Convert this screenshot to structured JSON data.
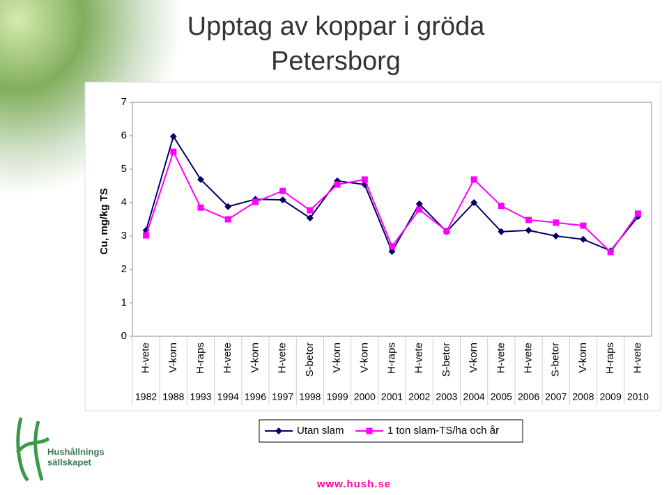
{
  "chart_data": {
    "type": "line",
    "title": "Upptag av koppar i gröda",
    "subtitle": "Petersborg",
    "y_label": "Cu, mg/kg TS",
    "categories": [
      "H-vete",
      "V-korn",
      "H-raps",
      "H-vete",
      "V-korn",
      "H-vete",
      "S-betor",
      "V-korn",
      "V-korn",
      "H-raps",
      "H-vete",
      "S-betor",
      "V-korn",
      "H-vete",
      "H-vete",
      "S-betor",
      "V-korn",
      "H-raps",
      "H-vete"
    ],
    "years": [
      "1982",
      "1988",
      "1993",
      "1994",
      "1996",
      "1997",
      "1998",
      "1999",
      "2000",
      "2001",
      "2002",
      "2003",
      "2004",
      "2005",
      "2006",
      "2007",
      "2008",
      "2009",
      "2010"
    ],
    "series": [
      {
        "name": "Utan slam",
        "color": "#000066",
        "marker": "diamond",
        "values": [
          3.17,
          5.98,
          4.69,
          3.88,
          4.1,
          4.08,
          3.54,
          4.65,
          4.54,
          2.54,
          3.96,
          3.13,
          4.0,
          3.13,
          3.17,
          3.0,
          2.9,
          2.56,
          3.58
        ]
      },
      {
        "name": "1 ton slam-TS/ha och år",
        "color": "#ff00ff",
        "marker": "square",
        "values": [
          3.02,
          5.52,
          3.85,
          3.5,
          4.02,
          4.35,
          3.77,
          4.54,
          4.69,
          2.69,
          3.79,
          3.15,
          4.69,
          3.9,
          3.48,
          3.4,
          3.31,
          2.52,
          3.67
        ]
      }
    ],
    "ylim": [
      0,
      7
    ],
    "yticks": [
      0,
      1,
      2,
      3,
      4,
      5,
      6,
      7
    ],
    "grid": false
  },
  "logo": {
    "line1": "Hushållnings",
    "line2": "sällskapet"
  },
  "footer": "www.hush.se"
}
